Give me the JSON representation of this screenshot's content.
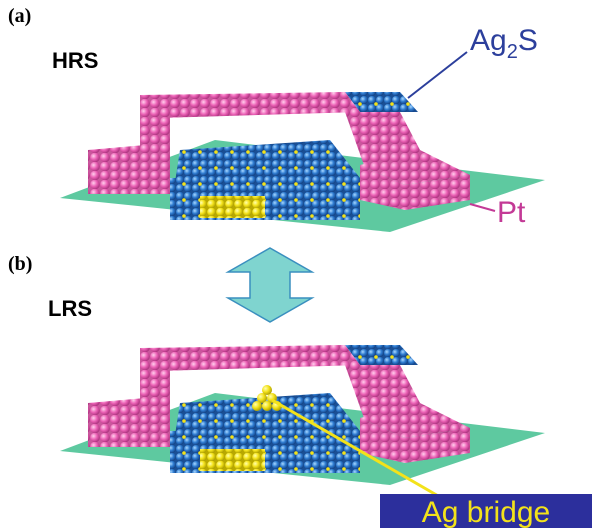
{
  "panels": [
    {
      "label": "(a)",
      "state": "HRS"
    },
    {
      "label": "(b)",
      "state": "LRS"
    }
  ],
  "annotations": {
    "ag2s": {
      "base": "Ag",
      "sub": "2",
      "tail": "S"
    },
    "pt": "Pt",
    "ag_bridge": "Ag bridge"
  }
}
